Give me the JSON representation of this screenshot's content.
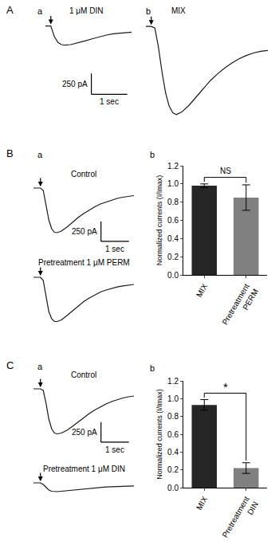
{
  "chart_data": [
    {
      "type": "line",
      "panel": "A",
      "subpanel": "a",
      "title": "1 μM DIN",
      "color": "#1a1a1a",
      "x": [
        0,
        0.15,
        0.25,
        0.35,
        0.45,
        0.55,
        0.7,
        0.9,
        1.1,
        1.3,
        1.5,
        1.7,
        1.9,
        2.1,
        2.4
      ],
      "values": [
        0,
        0,
        -130,
        -200,
        -225,
        -232,
        -225,
        -205,
        -180,
        -155,
        -130,
        -110,
        -95,
        -85,
        -75
      ],
      "xlim": [
        0,
        2.4
      ],
      "ylim": [
        -860,
        25
      ],
      "xticks": [],
      "yticks": [],
      "tick_labels": false,
      "grid": false,
      "stimulus": 0.15,
      "scale_bar": {
        "x": 1,
        "y": 250,
        "x_label": "1 sec",
        "y_label": "250 pA"
      }
    },
    {
      "type": "line",
      "subpanel": "b",
      "title": "MIX",
      "color": "#1a1a1a",
      "x": [
        0,
        0.15,
        0.25,
        0.35,
        0.45,
        0.55,
        0.65,
        0.75,
        0.85,
        1.0,
        1.2,
        1.4,
        1.6,
        1.8,
        2.0,
        2.2,
        2.4,
        2.6,
        2.8,
        3.0,
        3.2,
        3.4
      ],
      "values": [
        0,
        0,
        -20,
        -250,
        -550,
        -800,
        -960,
        -1040,
        -1060,
        -1030,
        -950,
        -850,
        -750,
        -650,
        -570,
        -500,
        -440,
        -390,
        -350,
        -320,
        -300,
        -290
      ],
      "xlim": [
        0,
        3.4
      ],
      "ylim": [
        -1120,
        30
      ],
      "xticks": [],
      "yticks": [],
      "tick_labels": false,
      "grid": false,
      "stimulus": 0.15
    },
    {
      "type": "line",
      "panel": "B",
      "subpanel": "a",
      "title": "Control",
      "color": "#1a1a1a",
      "x": [
        0,
        0.25,
        0.35,
        0.45,
        0.55,
        0.65,
        0.75,
        0.85,
        1.0,
        1.2,
        1.4,
        1.6,
        1.8,
        2.0,
        2.2,
        2.4,
        2.6,
        2.8,
        3.0,
        3.2,
        3.4,
        3.6
      ],
      "values": [
        0,
        0,
        -30,
        -220,
        -400,
        -510,
        -555,
        -560,
        -540,
        -490,
        -430,
        -370,
        -320,
        -275,
        -235,
        -200,
        -175,
        -150,
        -130,
        -115,
        -105,
        -95
      ],
      "xlim": [
        0,
        3.6
      ],
      "ylim": [
        -700,
        60
      ],
      "xticks": [],
      "yticks": [],
      "tick_labels": false,
      "grid": false,
      "stimulus": 0.25,
      "scale_bar": {
        "x": 1,
        "y": 250,
        "x_label": "1 sec",
        "y_label": "250 pA"
      }
    },
    {
      "type": "line",
      "title": "Pretreatment 1 μM PERM",
      "color": "#1a1a1a",
      "x": [
        0,
        0.25,
        0.35,
        0.45,
        0.55,
        0.65,
        0.75,
        0.85,
        1.0,
        1.2,
        1.4,
        1.6,
        1.8,
        2.0,
        2.2,
        2.4,
        2.6,
        2.8,
        3.0,
        3.2,
        3.4,
        3.6
      ],
      "values": [
        0,
        0,
        -40,
        -250,
        -430,
        -520,
        -555,
        -555,
        -535,
        -480,
        -420,
        -360,
        -305,
        -260,
        -220,
        -185,
        -160,
        -140,
        -122,
        -108,
        -98,
        -90
      ],
      "xlim": [
        0,
        3.6
      ],
      "ylim": [
        -620,
        60
      ],
      "xticks": [],
      "yticks": [],
      "tick_labels": false,
      "grid": false,
      "stimulus": 0.25
    },
    {
      "type": "bar",
      "subpanel": "b",
      "y_label": "Normalized currents (I/Imax)",
      "categories": [
        "MIX",
        "Pretreatment PERM"
      ],
      "values": [
        0.98,
        0.85
      ],
      "errors": [
        0.02,
        0.14
      ],
      "colors": [
        "#262626",
        "#808080"
      ],
      "ylim": [
        0,
        1.2
      ],
      "yticks": [
        {
          "value": 0,
          "label": "0.0"
        },
        0.2,
        0.4,
        0.6,
        0.8,
        {
          "value": 1,
          "label": "1.0"
        },
        1.2
      ],
      "grid": false,
      "significance": "NS"
    },
    {
      "type": "line",
      "panel": "C",
      "subpanel": "a",
      "title": "Control",
      "color": "#1a1a1a",
      "x": [
        0,
        0.25,
        0.35,
        0.45,
        0.55,
        0.65,
        0.75,
        0.85,
        1.0,
        1.2,
        1.4,
        1.6,
        1.8,
        2.0,
        2.2,
        2.4,
        2.6,
        2.8,
        3.0,
        3.2,
        3.4,
        3.6
      ],
      "values": [
        0,
        0,
        -20,
        -180,
        -380,
        -500,
        -555,
        -565,
        -555,
        -520,
        -470,
        -415,
        -360,
        -310,
        -265,
        -225,
        -190,
        -160,
        -135,
        -115,
        -100,
        -90
      ],
      "xlim": [
        0,
        3.6
      ],
      "ylim": [
        -700,
        60
      ],
      "xticks": [],
      "yticks": [],
      "tick_labels": false,
      "grid": false,
      "stimulus": 0.25,
      "scale_bar": {
        "x": 1,
        "y": 250,
        "x_label": "1 sec",
        "y_label": "250 pA"
      }
    },
    {
      "type": "line",
      "title": "Pretreatment 1 μM DIN",
      "color": "#1a1a1a",
      "x": [
        0,
        0.25,
        0.35,
        0.45,
        0.55,
        0.65,
        0.75,
        0.85,
        1.0,
        1.2,
        1.4,
        1.6,
        1.8,
        2.0,
        2.2,
        2.4,
        2.6,
        2.8,
        3.0,
        3.2,
        3.4,
        3.6
      ],
      "values": [
        0,
        0,
        -20,
        -60,
        -90,
        -105,
        -110,
        -110,
        -105,
        -98,
        -90,
        -82,
        -75,
        -68,
        -62,
        -57,
        -52,
        -48,
        -45,
        -42,
        -40,
        -38
      ],
      "xlim": [
        0,
        3.6
      ],
      "ylim": [
        -200,
        60
      ],
      "xticks": [],
      "yticks": [],
      "tick_labels": false,
      "grid": false,
      "stimulus": 0.25
    },
    {
      "type": "bar",
      "subpanel": "b",
      "y_label": "Normalized currents (I/Imax)",
      "categories": [
        "MIX",
        "Pretreatment DIN"
      ],
      "values": [
        0.93,
        0.22
      ],
      "errors": [
        0.06,
        0.06
      ],
      "colors": [
        "#262626",
        "#808080"
      ],
      "ylim": [
        0,
        1.2
      ],
      "yticks": [
        {
          "value": 0,
          "label": "0.0"
        },
        0.2,
        0.4,
        0.6,
        0.8,
        {
          "value": 1,
          "label": "1.0"
        },
        1.2
      ],
      "grid": false,
      "significance": "*"
    }
  ]
}
